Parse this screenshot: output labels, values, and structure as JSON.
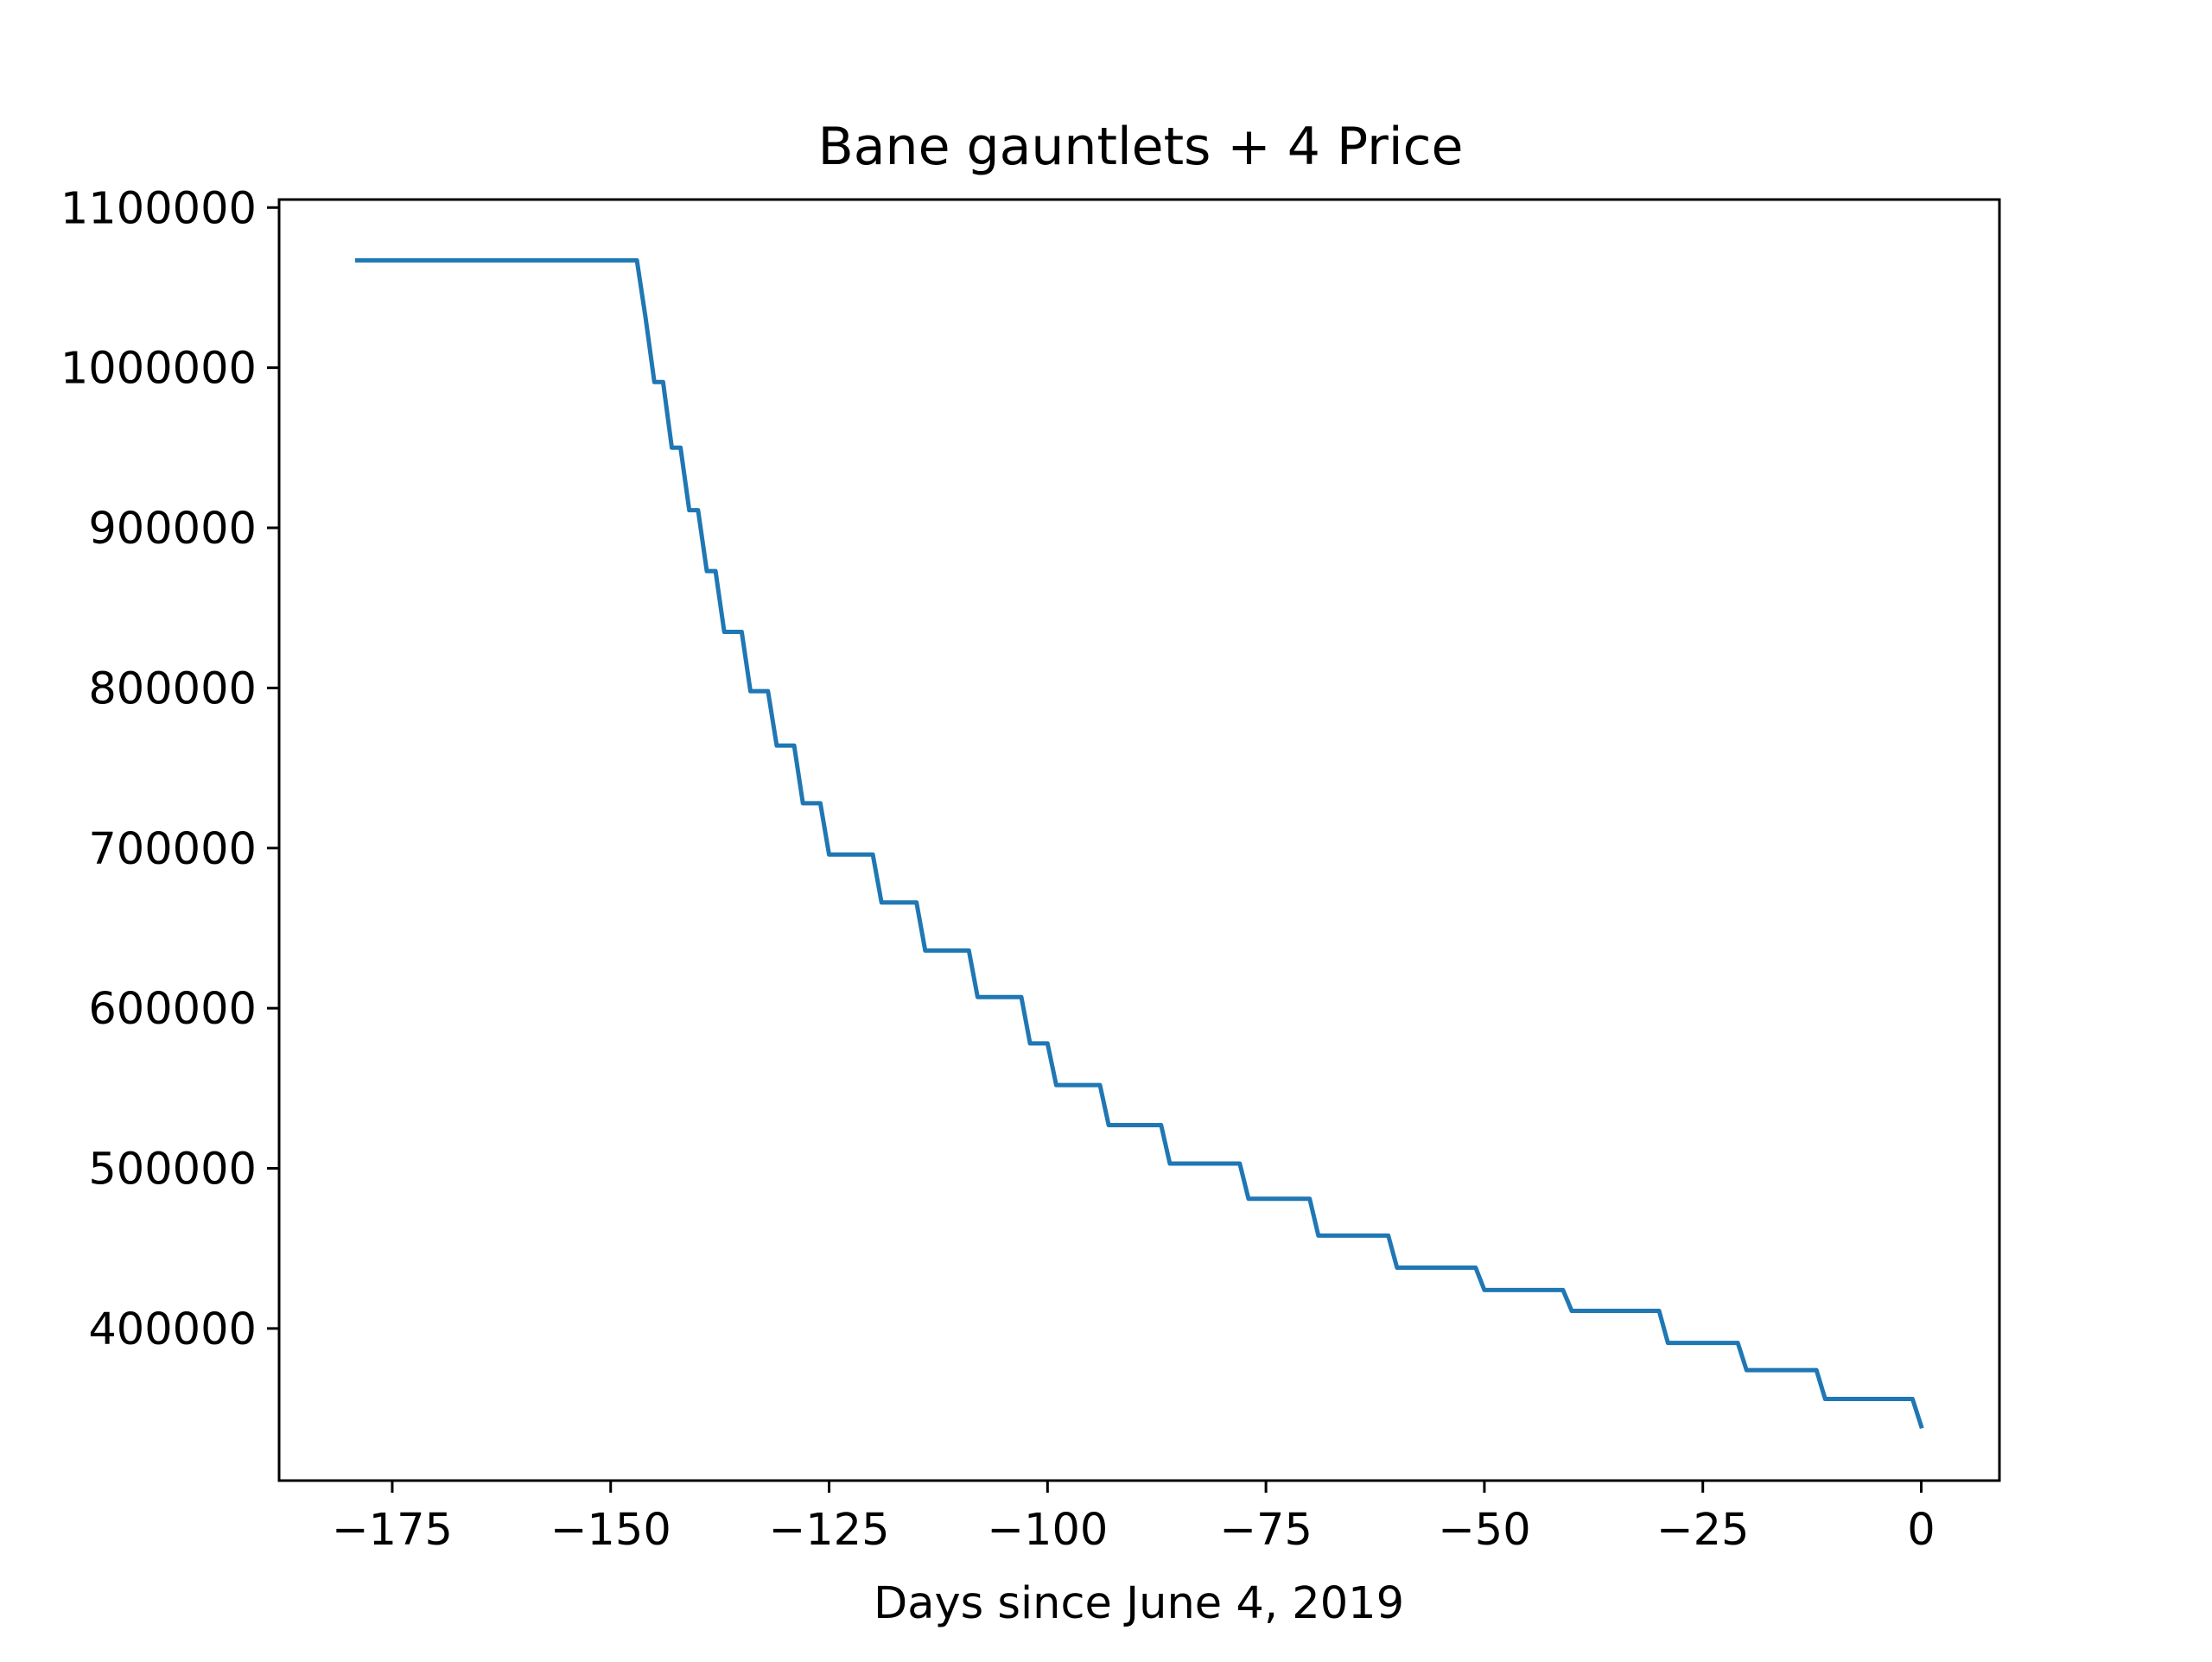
{
  "chart_data": {
    "type": "line",
    "title": "Bane gauntlets + 4 Price",
    "xlabel": "Days since June 4, 2019",
    "ylabel": "",
    "xlim": [
      -187.95,
      8.95
    ],
    "ylim": [
      305000,
      1105000
    ],
    "xticks": [
      -175,
      -150,
      -125,
      -100,
      -75,
      -50,
      -25,
      0
    ],
    "xtick_labels": [
      "−175",
      "−150",
      "−125",
      "−100",
      "−75",
      "−50",
      "−25",
      "0"
    ],
    "yticks": [
      400000,
      500000,
      600000,
      700000,
      800000,
      900000,
      1000000,
      1100000
    ],
    "ytick_labels": [
      "400000",
      "500000",
      "600000",
      "700000",
      "800000",
      "900000",
      "1000000",
      "1100000"
    ],
    "grid": false,
    "legend": "none",
    "color": "#1f77b4",
    "series": [
      {
        "x": [
          -179,
          -147,
          -146,
          -145,
          -144,
          -143,
          -142,
          -141,
          -140,
          -139,
          -138,
          -137,
          -135,
          -134,
          -132,
          -131,
          -129,
          -128,
          -126,
          -125,
          -123,
          -120,
          -119,
          -115,
          -114,
          -109,
          -108,
          -103,
          -102,
          -100,
          -99,
          -94,
          -93,
          -87,
          -86,
          -78,
          -77,
          -70,
          -69,
          -61,
          -60,
          -51,
          -50,
          -41,
          -40,
          -30,
          -29,
          -21,
          -20,
          -12,
          -11,
          -1,
          0
        ],
        "y": [
          1067000,
          1067000,
          1031000,
          991000,
          991000,
          950000,
          950000,
          911000,
          911000,
          873000,
          873000,
          835000,
          835000,
          798000,
          798000,
          764000,
          764000,
          728000,
          728000,
          696000,
          696000,
          696000,
          666000,
          666000,
          636000,
          636000,
          607000,
          607000,
          578000,
          578000,
          552000,
          552000,
          527000,
          527000,
          503000,
          503000,
          481000,
          481000,
          458000,
          458000,
          438000,
          438000,
          424000,
          424000,
          411000,
          411000,
          391000,
          391000,
          374000,
          374000,
          356000,
          356000,
          339000
        ]
      }
    ]
  }
}
